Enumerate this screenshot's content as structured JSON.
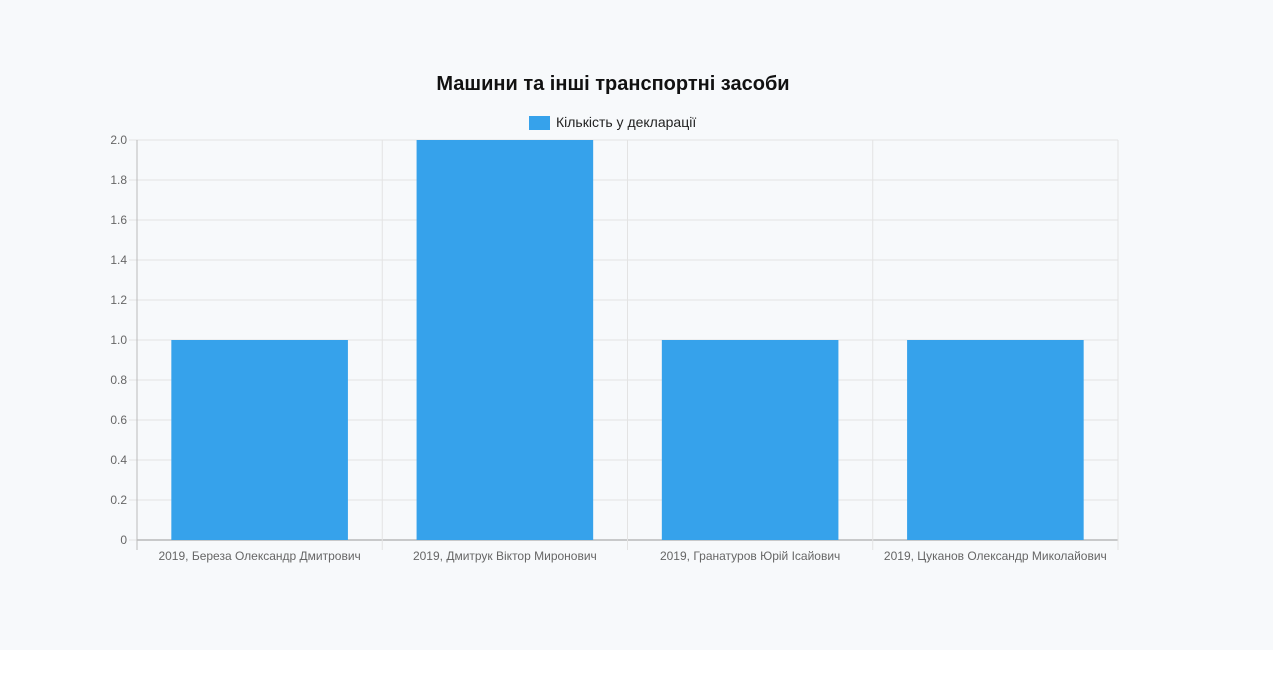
{
  "chart_data": {
    "type": "bar",
    "title": "Машини та інші транспортні засоби",
    "categories": [
      "2019, Береза Олександр Дмитрович",
      "2019, Дмитрук Віктор Миронович",
      "2019, Гранатуров Юрій Ісайович",
      "2019, Цуканов Олександр Миколайович"
    ],
    "series": [
      {
        "name": "Кількість у декларації",
        "values": [
          1,
          2,
          1,
          1
        ],
        "color": "#36a2eb"
      }
    ],
    "ylim": [
      0,
      2
    ],
    "yticks": [
      "0",
      "0.2",
      "0.4",
      "0.6",
      "0.8",
      "1.0",
      "1.2",
      "1.4",
      "1.6",
      "1.8",
      "2.0"
    ],
    "grid": true,
    "legend_position": "top"
  }
}
